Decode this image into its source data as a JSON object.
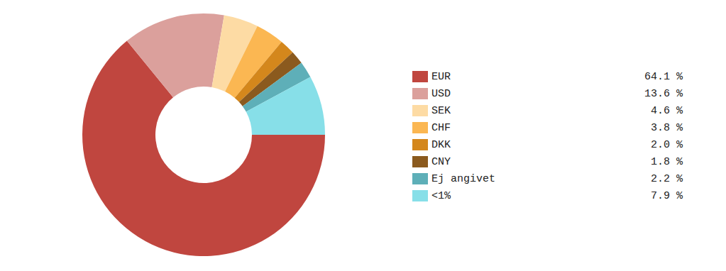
{
  "chart_data": {
    "type": "donut",
    "categories": [
      "EUR",
      "USD",
      "SEK",
      "CHF",
      "DKK",
      "CNY",
      "Ej angivet",
      "<1%"
    ],
    "values": [
      64.1,
      13.6,
      4.6,
      3.8,
      2.0,
      1.8,
      2.2,
      7.9
    ],
    "value_labels": [
      "64.1 %",
      "13.6 %",
      "4.6 %",
      "3.8 %",
      "2.0 %",
      "1.8 %",
      "2.2 %",
      "7.9 %"
    ],
    "colors": [
      "#c0463f",
      "#dba09c",
      "#fddba4",
      "#fbb752",
      "#d4871c",
      "#8b5a1e",
      "#5eafb8",
      "#87dfe8"
    ],
    "legend": "right"
  }
}
